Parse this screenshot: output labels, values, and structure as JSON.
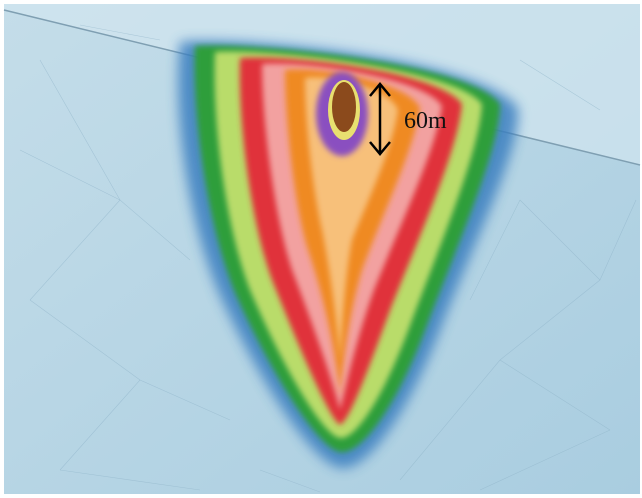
{
  "annotation": {
    "label": "60m"
  }
}
